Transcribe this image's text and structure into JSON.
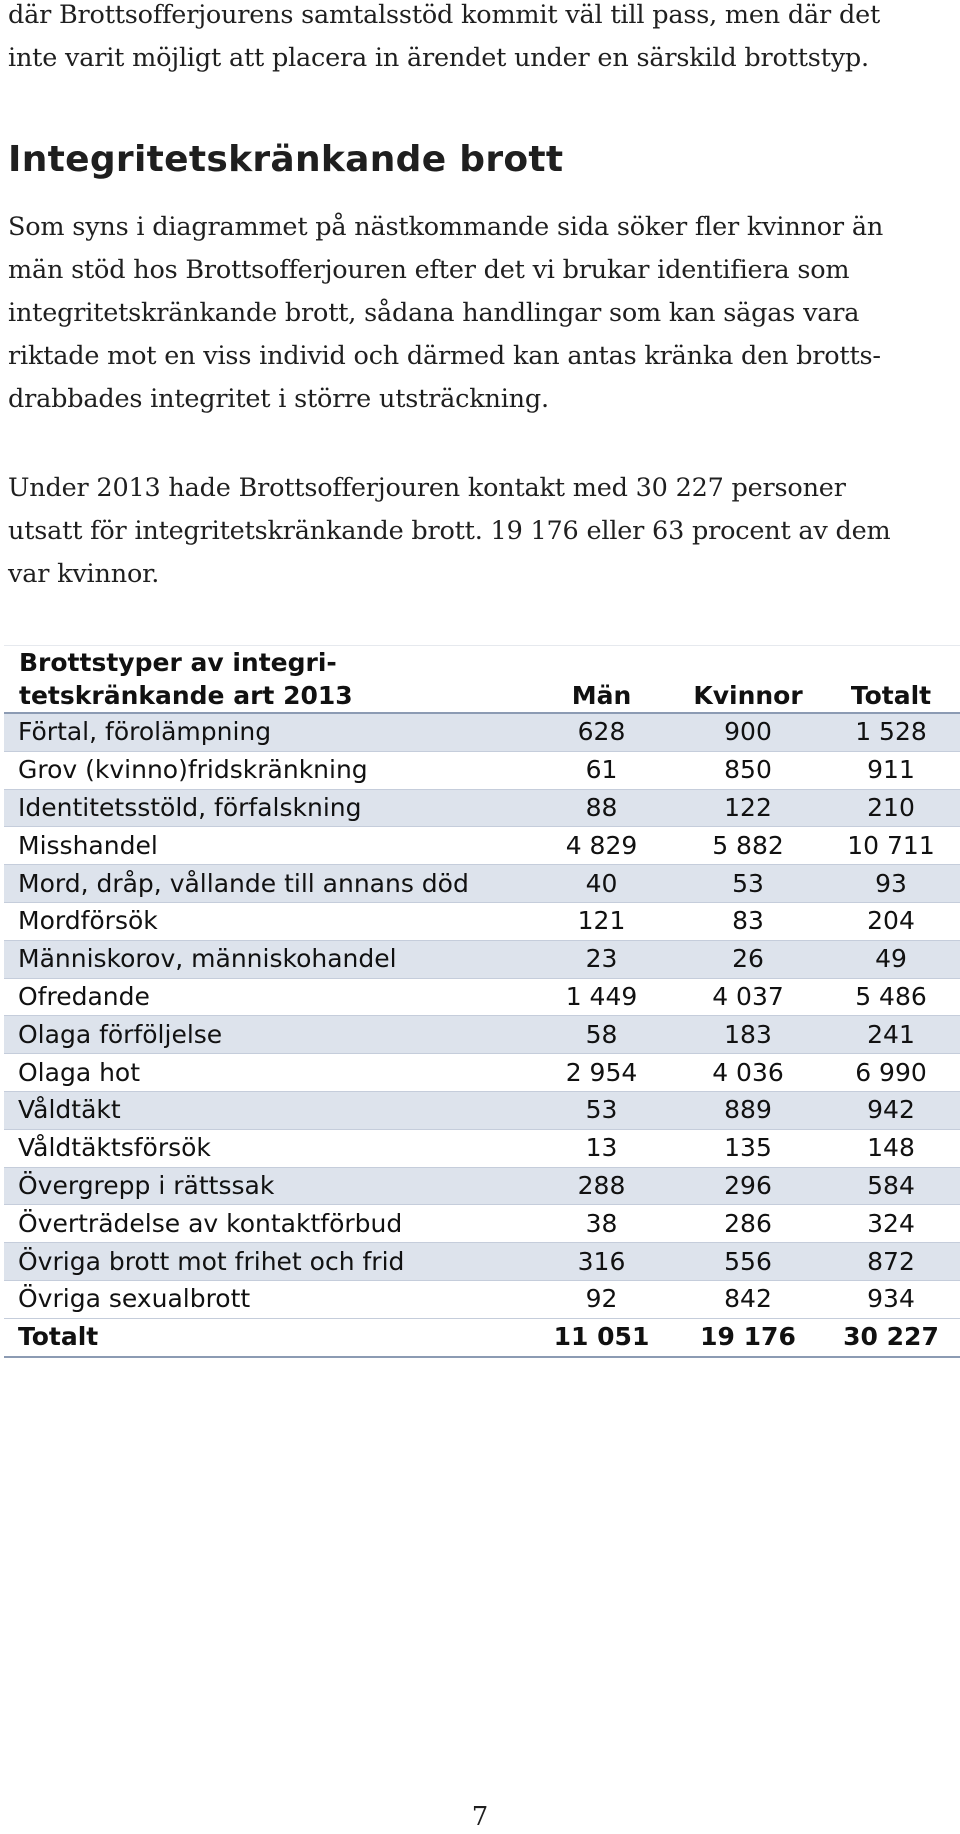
{
  "intro_paragraph": {
    "lines": [
      "där Brottsofferjourens samtalsstöd kommit väl till pass, men där det",
      "inte varit möjligt att placera in ärendet under en särskild brottstyp."
    ]
  },
  "section": {
    "heading": "Integritetskränkande brott",
    "paragraph_1": {
      "lines": [
        "Som syns i diagrammet på nästkommande sida söker fler kvinnor än",
        "män stöd hos Brottsofferjouren efter det vi brukar identifiera som",
        "integritetskränkande brott, sådana handlingar som kan sägas vara",
        "riktade mot en viss individ och därmed kan antas kränka den brotts-",
        "drabbades integritet i större utsträckning."
      ]
    },
    "paragraph_2": {
      "lines": [
        "Under 2013 hade Brottsofferjouren kontakt med 30 227 personer",
        "utsatt för integritetskränkande brott. 19 176 eller 63 procent av dem",
        "var kvinnor."
      ]
    }
  },
  "table": {
    "header": {
      "title_line_1": "Brottstyper av integri-",
      "title_line_2": "tetskränkande art 2013",
      "col_man": "Män",
      "col_kvinnor": "Kvinnor",
      "col_totalt": "Totalt"
    },
    "rows": [
      {
        "name": "Förtal, förolämpning",
        "man": "628",
        "kvinnor": "900",
        "totalt": "1 528"
      },
      {
        "name": "Grov (kvinno)fridskränkning",
        "man": "61",
        "kvinnor": "850",
        "totalt": "911"
      },
      {
        "name": "Identitetsstöld, förfalskning",
        "man": "88",
        "kvinnor": "122",
        "totalt": "210"
      },
      {
        "name": "Misshandel",
        "man": "4 829",
        "kvinnor": "5 882",
        "totalt": "10 711"
      },
      {
        "name": "Mord, dråp, vållande till annans död",
        "man": "40",
        "kvinnor": "53",
        "totalt": "93"
      },
      {
        "name": "Mordförsök",
        "man": "121",
        "kvinnor": "83",
        "totalt": "204"
      },
      {
        "name": "Människorov, människohandel",
        "man": "23",
        "kvinnor": "26",
        "totalt": "49"
      },
      {
        "name": "Ofredande",
        "man": "1 449",
        "kvinnor": "4 037",
        "totalt": "5 486"
      },
      {
        "name": "Olaga förföljelse",
        "man": "58",
        "kvinnor": "183",
        "totalt": "241"
      },
      {
        "name": "Olaga hot",
        "man": "2 954",
        "kvinnor": "4 036",
        "totalt": "6 990"
      },
      {
        "name": "Våldtäkt",
        "man": "53",
        "kvinnor": "889",
        "totalt": "942"
      },
      {
        "name": "Våldtäktsförsök",
        "man": "13",
        "kvinnor": "135",
        "totalt": "148"
      },
      {
        "name": "Övergrepp i rättssak",
        "man": "288",
        "kvinnor": "296",
        "totalt": "584"
      },
      {
        "name": "Överträdelse av kontaktförbud",
        "man": "38",
        "kvinnor": "286",
        "totalt": "324"
      },
      {
        "name": "Övriga brott mot frihet och frid",
        "man": "316",
        "kvinnor": "556",
        "totalt": "872"
      },
      {
        "name": "Övriga sexualbrott",
        "man": "92",
        "kvinnor": "842",
        "totalt": "934"
      }
    ],
    "total_row": {
      "name": "Totalt",
      "man": "11 051",
      "kvinnor": "19 176",
      "totalt": "30 227"
    },
    "colors": {
      "shaded_row": "#dde3ec",
      "rule": "#8c9bb3"
    }
  },
  "page_number": "7"
}
